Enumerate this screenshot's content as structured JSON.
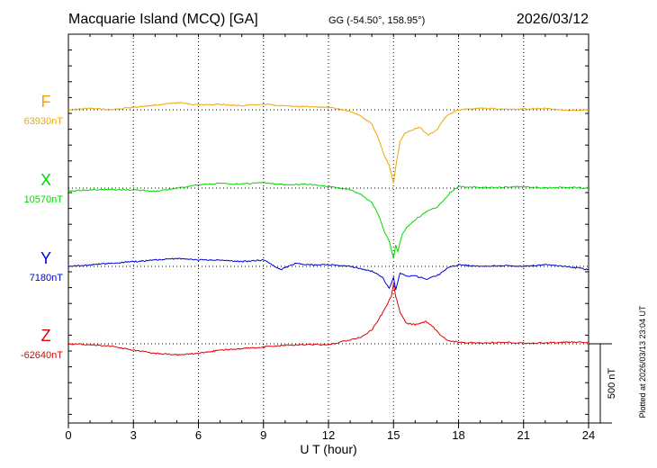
{
  "header": {
    "station": "Macquarie Island (MCQ)  [GA]",
    "coords": "GG (-54.50°, 158.95°)",
    "date": "2026/03/12"
  },
  "plotted_note": "Plotted at 2026/03/13 23:04 UT",
  "scale_label": "500 nT",
  "scale_nT": 500,
  "chart_data": {
    "type": "line",
    "xlabel": "U T (hour)",
    "xlim": [
      0,
      24
    ],
    "xticks": [
      0,
      3,
      6,
      9,
      12,
      15,
      18,
      21,
      24
    ],
    "grid": true,
    "series": [
      {
        "name": "F",
        "baseline_label": "63930nT",
        "baseline_nT": 63930,
        "color": "#f0a800",
        "x": [
          0,
          1,
          2,
          3,
          4,
          4.8,
          5.2,
          6,
          7,
          8,
          9,
          10,
          11,
          12,
          12.5,
          13,
          13.5,
          14,
          14.3,
          14.6,
          14.8,
          15.0,
          15.1,
          15.3,
          15.5,
          15.8,
          16.2,
          16.6,
          17,
          17.2,
          17.5,
          18,
          19,
          20,
          21,
          22,
          23,
          24
        ],
        "values": [
          0,
          10,
          0,
          15,
          30,
          40,
          45,
          30,
          35,
          25,
          35,
          25,
          20,
          15,
          5,
          -10,
          -40,
          -90,
          -180,
          -300,
          -350,
          -460,
          -360,
          -200,
          -150,
          -130,
          -110,
          -160,
          -130,
          -80,
          -30,
          0,
          10,
          5,
          5,
          10,
          -5,
          0
        ]
      },
      {
        "name": "X",
        "baseline_label": "10570nT",
        "baseline_nT": 10570,
        "color": "#00d800",
        "x": [
          0,
          1,
          2,
          3,
          4,
          5,
          6,
          7,
          8,
          9,
          10,
          11,
          12,
          12.5,
          13,
          13.5,
          14,
          14.3,
          14.6,
          14.8,
          15.0,
          15.1,
          15.2,
          15.4,
          15.6,
          16,
          16.5,
          17,
          17.3,
          17.6,
          18,
          19,
          20,
          21,
          22,
          23,
          24
        ],
        "values": [
          -20,
          -10,
          -10,
          -10,
          -20,
          0,
          20,
          30,
          25,
          35,
          20,
          25,
          10,
          0,
          -10,
          -40,
          -90,
          -170,
          -280,
          -330,
          -440,
          -360,
          -400,
          -290,
          -250,
          -200,
          -150,
          -120,
          -80,
          -30,
          10,
          5,
          5,
          10,
          0,
          5,
          0
        ]
      },
      {
        "name": "Y",
        "baseline_label": "7180nT",
        "baseline_nT": 7180,
        "color": "#0000d8",
        "x": [
          0,
          1,
          2,
          3,
          4,
          5,
          6,
          7,
          8,
          9,
          9.8,
          10.5,
          11,
          12,
          13,
          14,
          14.5,
          14.8,
          15.0,
          15.1,
          15.3,
          15.6,
          16,
          16.5,
          17,
          17.5,
          18,
          19,
          20,
          21,
          22,
          23,
          24
        ],
        "values": [
          0,
          10,
          20,
          30,
          40,
          50,
          40,
          40,
          30,
          40,
          -20,
          20,
          10,
          10,
          0,
          -30,
          -70,
          -140,
          -70,
          -150,
          -40,
          -60,
          -60,
          -80,
          -60,
          -10,
          10,
          0,
          5,
          0,
          10,
          0,
          -20
        ]
      },
      {
        "name": "Z",
        "baseline_label": "-62640nT",
        "baseline_nT": -62640,
        "color": "#e00000",
        "x": [
          0,
          1,
          2,
          3,
          4,
          5,
          6,
          7,
          8,
          9,
          10,
          11,
          12,
          12.5,
          13,
          13.5,
          14,
          14.3,
          14.6,
          14.9,
          15.0,
          15.1,
          15.3,
          15.6,
          16,
          16.5,
          16.8,
          17.2,
          17.5,
          18,
          19,
          20,
          21,
          22,
          23,
          24
        ],
        "values": [
          0,
          -5,
          -15,
          -40,
          -60,
          -70,
          -60,
          -40,
          -30,
          -20,
          -10,
          -5,
          -5,
          10,
          25,
          40,
          90,
          150,
          220,
          300,
          380,
          300,
          200,
          130,
          120,
          140,
          110,
          50,
          20,
          10,
          5,
          10,
          5,
          5,
          10,
          10
        ]
      }
    ]
  }
}
